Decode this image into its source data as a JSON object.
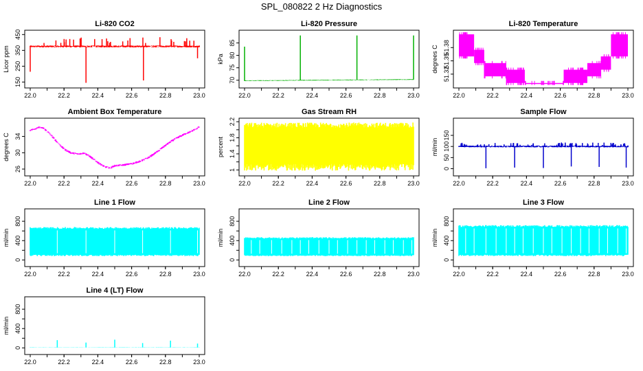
{
  "page_title": "SPL_080822  2 Hz Diagnostics",
  "chart_data": [
    {
      "type": "line",
      "title": "Li-820 CO2",
      "ylabel": "Licor ppm",
      "color": "#ff0000",
      "xlim": [
        22.0,
        23.0
      ],
      "ylim": [
        130,
        460
      ],
      "yticks": [
        150,
        250,
        350,
        450
      ],
      "xticks": [
        "22.0",
        "22.2",
        "22.4",
        "22.6",
        "22.8",
        "23.0"
      ],
      "series": [
        {
          "x": [
            22.0,
            22.33,
            22.67,
            23.0
          ],
          "values": [
            375,
            375,
            375,
            375
          ]
        }
      ],
      "pattern": {
        "kind": "noise",
        "noise": 6,
        "spikes_up": {
          "n": 30,
          "to": 435
        },
        "spikes_down": [
          [
            22.0,
            215
          ],
          [
            22.33,
            145
          ],
          [
            22.67,
            160
          ],
          [
            22.99,
            300
          ]
        ]
      }
    },
    {
      "type": "line",
      "title": "Li-820 Pressure",
      "ylabel": "kPa",
      "color": "#00b000",
      "xlim": [
        22.0,
        23.0
      ],
      "ylim": [
        68,
        89
      ],
      "yticks": [
        70,
        75,
        80,
        85
      ],
      "xticks": [
        "22.0",
        "22.2",
        "22.4",
        "22.6",
        "22.8",
        "23.0"
      ],
      "series": [
        {
          "x": [
            22.0,
            23.0
          ],
          "values": [
            69.8,
            70.3
          ]
        }
      ],
      "pattern": {
        "kind": "noise",
        "noise": 0.15,
        "spikes_up_at": [
          [
            22.0,
            83.5
          ],
          [
            22.33,
            88
          ],
          [
            22.665,
            88
          ],
          [
            23.0,
            88
          ]
        ]
      }
    },
    {
      "type": "step-band",
      "title": "Li-820 Temperature",
      "ylabel": "degrees C",
      "color": "#ff00ff",
      "xlim": [
        22.0,
        23.0
      ],
      "ylim": [
        51.295,
        51.413
      ],
      "yticks": [
        51.32,
        51.35,
        51.38
      ],
      "xticks": [
        "22.0",
        "22.2",
        "22.4",
        "22.6",
        "22.8",
        "23.0"
      ],
      "steps": [
        {
          "x0": 22.0,
          "x1": 22.09,
          "lo": 51.36,
          "hi": 51.41
        },
        {
          "x0": 22.09,
          "x1": 22.15,
          "lo": 51.345,
          "hi": 51.375
        },
        {
          "x0": 22.15,
          "x1": 22.28,
          "lo": 51.315,
          "hi": 51.345
        },
        {
          "x0": 22.28,
          "x1": 22.39,
          "lo": 51.3,
          "hi": 51.33
        },
        {
          "x0": 22.39,
          "x1": 22.62,
          "lo": 51.3,
          "hi": 51.3
        },
        {
          "x0": 22.62,
          "x1": 22.76,
          "lo": 51.3,
          "hi": 51.33
        },
        {
          "x0": 22.76,
          "x1": 22.84,
          "lo": 51.315,
          "hi": 51.345
        },
        {
          "x0": 22.84,
          "x1": 22.9,
          "lo": 51.33,
          "hi": 51.36
        },
        {
          "x0": 22.9,
          "x1": 23.0,
          "lo": 51.36,
          "hi": 51.41
        }
      ]
    },
    {
      "type": "line",
      "title": "Ambient Box Temperature",
      "ylabel": "degrees C",
      "color": "#ff00ff",
      "xlim": [
        22.0,
        23.0
      ],
      "ylim": [
        25,
        37.8
      ],
      "yticks": [
        26,
        30,
        34
      ],
      "xticks": [
        "22.0",
        "22.2",
        "22.4",
        "22.6",
        "22.8",
        "23.0"
      ],
      "series": [
        {
          "x": [
            22.0,
            22.05,
            22.08,
            22.12,
            22.16,
            22.2,
            22.24,
            22.28,
            22.32,
            22.35,
            22.4,
            22.44,
            22.47,
            22.5,
            22.55,
            22.6,
            22.65,
            22.7,
            22.75,
            22.8,
            22.85,
            22.9,
            22.95,
            23.0
          ],
          "values": [
            35.5,
            36.2,
            36.0,
            34.5,
            32.6,
            30.9,
            30.0,
            29.7,
            29.9,
            29.2,
            27.6,
            26.6,
            26.2,
            26.8,
            27.0,
            27.3,
            27.9,
            28.8,
            30.2,
            31.8,
            33.2,
            34.3,
            35.2,
            36.3
          ]
        }
      ],
      "pattern": {
        "kind": "noise",
        "noise": 0.25
      }
    },
    {
      "type": "band",
      "title": "Gas Stream RH",
      "ylabel": "percent",
      "color": "#ffff00",
      "xlim": [
        22.0,
        23.0
      ],
      "ylim": [
        0.92,
        2.22
      ],
      "yticks": [
        1.0,
        1.4,
        1.8,
        2.2
      ],
      "yticks_extra": [
        1.2,
        1.6,
        2.0
      ],
      "xticks": [
        "22.0",
        "22.2",
        "22.4",
        "22.6",
        "22.8",
        "23.0"
      ],
      "band": {
        "lo": 1.15,
        "hi": 2.05,
        "lo_min": 0.98,
        "hi_max": 2.18
      }
    },
    {
      "type": "line",
      "title": "Sample Flow",
      "ylabel": "ml/min",
      "color": "#0000cc",
      "xlim": [
        22.0,
        23.0
      ],
      "ylim": [
        -20,
        215
      ],
      "yticks": [
        0,
        50,
        100,
        150
      ],
      "xticks": [
        "22.0",
        "22.2",
        "22.4",
        "22.6",
        "22.8",
        "23.0"
      ],
      "series": [
        {
          "x": [
            22.0,
            23.0
          ],
          "values": [
            100,
            100
          ]
        }
      ],
      "pattern": {
        "kind": "noise",
        "noise": 4,
        "spikes_up": {
          "n": 60,
          "to": 118
        },
        "spikes_down": [
          [
            22.16,
            2
          ],
          [
            22.33,
            5
          ],
          [
            22.5,
            3
          ],
          [
            22.665,
            10
          ],
          [
            22.83,
            8
          ],
          [
            22.99,
            5
          ]
        ]
      }
    },
    {
      "type": "band",
      "title": "Line 1 Flow",
      "ylabel": "ml/min",
      "color": "#00ffff",
      "xlim": [
        22.0,
        23.0
      ],
      "ylim": [
        -80,
        1000
      ],
      "yticks": [
        0,
        400,
        800
      ],
      "yticks_extra": [
        200,
        600
      ],
      "xticks": [
        "22.0",
        "22.2",
        "22.4",
        "22.6",
        "22.8",
        "23.0"
      ],
      "band": {
        "lo": 110,
        "hi": 640,
        "lo_min": 80,
        "hi_max": 680
      },
      "gaps": [
        22.16,
        22.33,
        22.5,
        22.665,
        22.83,
        22.99
      ]
    },
    {
      "type": "band",
      "title": "Line 2 Flow",
      "ylabel": "ml/min",
      "color": "#00ffff",
      "xlim": [
        22.0,
        23.0
      ],
      "ylim": [
        -80,
        1000
      ],
      "yticks": [
        0,
        400,
        800
      ],
      "yticks_extra": [
        200,
        600
      ],
      "xticks": [
        "22.0",
        "22.2",
        "22.4",
        "22.6",
        "22.8",
        "23.0"
      ],
      "band": {
        "lo": 100,
        "hi": 440,
        "lo_min": 80,
        "hi_max": 470
      },
      "gaps": [
        22.04,
        22.09,
        22.16,
        22.22,
        22.28,
        22.33,
        22.38,
        22.44,
        22.5,
        22.55,
        22.61,
        22.665,
        22.72,
        22.77,
        22.83,
        22.88,
        22.94,
        22.99
      ]
    },
    {
      "type": "band",
      "title": "Line 3 Flow",
      "ylabel": "ml/min",
      "color": "#00ffff",
      "xlim": [
        22.0,
        23.0
      ],
      "ylim": [
        -80,
        1000
      ],
      "yticks": [
        0,
        400,
        800
      ],
      "yticks_extra": [
        200,
        600
      ],
      "xticks": [
        "22.0",
        "22.2",
        "22.4",
        "22.6",
        "22.8",
        "23.0"
      ],
      "band": {
        "lo": 110,
        "hi": 680,
        "lo_min": 80,
        "hi_max": 720
      },
      "gaps": [
        22.04,
        22.09,
        22.16,
        22.22,
        22.28,
        22.33,
        22.38,
        22.44,
        22.5,
        22.55,
        22.61,
        22.665,
        22.72,
        22.77,
        22.83,
        22.88,
        22.94,
        22.99
      ]
    },
    {
      "type": "line",
      "title": "Line 4 (LT) Flow",
      "ylabel": "ml/min",
      "color": "#00ffff",
      "xlim": [
        22.0,
        23.0
      ],
      "ylim": [
        -80,
        1000
      ],
      "yticks": [
        0,
        400,
        800
      ],
      "yticks_extra": [
        200,
        600
      ],
      "xticks": [
        "22.0",
        "22.2",
        "22.4",
        "22.6",
        "22.8",
        "23.0"
      ],
      "series": [
        {
          "x": [
            22.0,
            23.0
          ],
          "values": [
            10,
            10
          ]
        }
      ],
      "pattern": {
        "kind": "noise",
        "noise": 3,
        "spikes_up_at": [
          [
            22.16,
            160
          ],
          [
            22.33,
            110
          ],
          [
            22.5,
            170
          ],
          [
            22.665,
            100
          ],
          [
            22.83,
            150
          ],
          [
            22.99,
            90
          ]
        ]
      }
    }
  ]
}
